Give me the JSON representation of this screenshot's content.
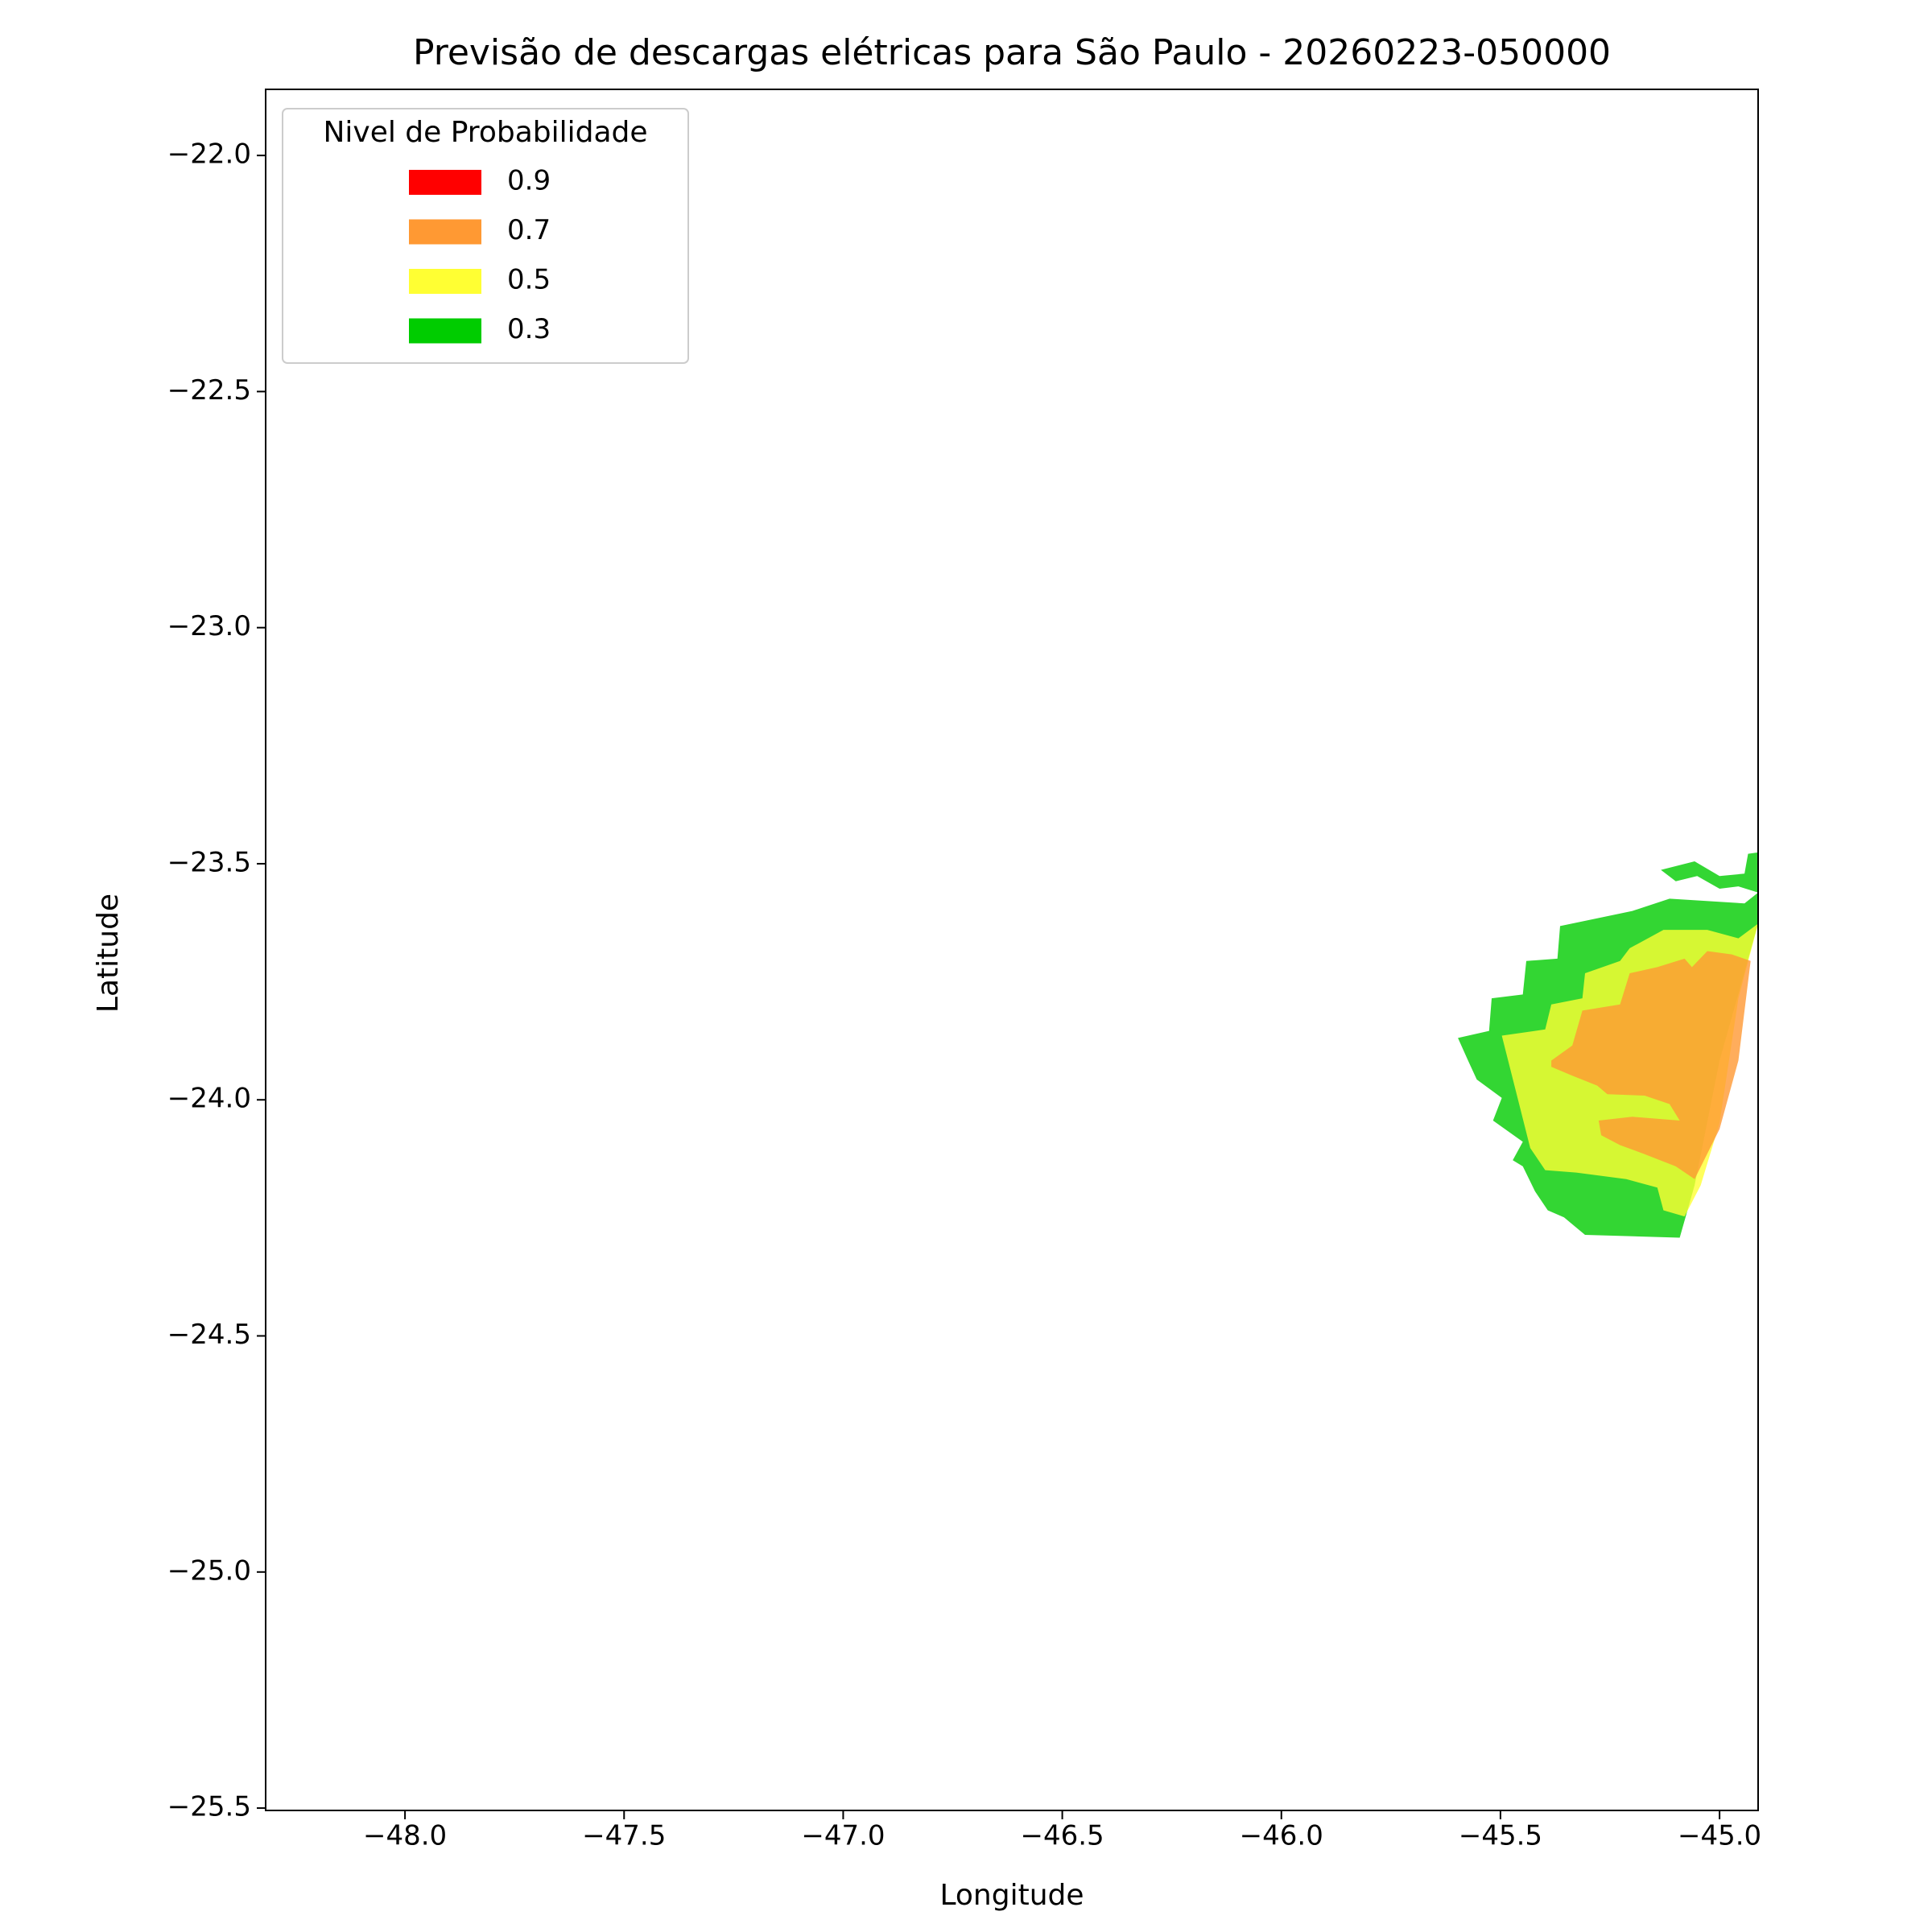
{
  "chart_data": {
    "type": "contourf",
    "title": "Previsão de descargas elétricas para São Paulo - 20260223-050000",
    "xlabel": "Longitude",
    "ylabel": "Latitude",
    "xlim": [
      -48.318,
      -44.912
    ],
    "ylim": [
      -25.505,
      -21.86
    ],
    "xticks": [
      {
        "value": -48,
        "label": "−48.0"
      },
      {
        "value": -47.5,
        "label": "−47.5"
      },
      {
        "value": -47,
        "label": "−47.0"
      },
      {
        "value": -46.5,
        "label": "−46.5"
      },
      {
        "value": -46,
        "label": "−46.0"
      },
      {
        "value": -45.5,
        "label": "−45.5"
      },
      {
        "value": -45,
        "label": "−45.0"
      }
    ],
    "yticks": [
      {
        "value": -22,
        "label": "−22.0"
      },
      {
        "value": -22.5,
        "label": "−22.5"
      },
      {
        "value": -23,
        "label": "−23.0"
      },
      {
        "value": -23.5,
        "label": "−23.5"
      },
      {
        "value": -24,
        "label": "−24.0"
      },
      {
        "value": -24.5,
        "label": "−24.5"
      },
      {
        "value": -25,
        "label": "−25.0"
      },
      {
        "value": -25.5,
        "label": "−25.5"
      }
    ],
    "alpha": 0.8,
    "legend": {
      "title": "Nivel de Probabilidade",
      "position": "upper left"
    },
    "series": [
      {
        "name": "0.9",
        "color": "#ff0000",
        "regions": []
      },
      {
        "name": "0.7",
        "color": "#ff9933",
        "regions": [
          {
            "lon": [
              -45.384,
              -45.336,
              -45.313,
              -45.227,
              -45.205,
              -45.142,
              -45.08,
              -45.063,
              -45.028,
              -44.972,
              -44.929,
              -44.957,
              -45.0,
              -45.057,
              -45.1,
              -45.171,
              -45.227,
              -45.27,
              -45.276,
              -45.199,
              -45.091,
              -45.114,
              -45.171,
              -45.256,
              -45.279,
              -45.336,
              -45.384
            ],
            "lat": [
              -23.917,
              -23.885,
              -23.811,
              -23.798,
              -23.732,
              -23.719,
              -23.701,
              -23.719,
              -23.685,
              -23.692,
              -23.706,
              -23.917,
              -24.062,
              -24.168,
              -24.141,
              -24.115,
              -24.096,
              -24.075,
              -24.044,
              -24.036,
              -24.044,
              -24.009,
              -23.991,
              -23.988,
              -23.97,
              -23.949,
              -23.93
            ]
          }
        ]
      },
      {
        "name": "0.5",
        "color": "#ffff33",
        "regions": [
          {
            "lon": [
              -45.497,
              -45.398,
              -45.384,
              -45.313,
              -45.307,
              -45.227,
              -45.205,
              -45.128,
              -45.028,
              -44.957,
              -44.912,
              -44.957,
              -45.0,
              -45.043,
              -45.08,
              -45.128,
              -45.142,
              -45.213,
              -45.327,
              -45.398,
              -45.432,
              -45.461
            ],
            "lat": [
              -23.864,
              -23.851,
              -23.798,
              -23.785,
              -23.732,
              -23.706,
              -23.679,
              -23.64,
              -23.64,
              -23.658,
              -23.627,
              -23.785,
              -24.049,
              -24.181,
              -24.247,
              -24.234,
              -24.186,
              -24.168,
              -24.154,
              -24.149,
              -24.102,
              -23.996
            ]
          }
        ]
      },
      {
        "name": "0.3",
        "color": "#00cc00",
        "regions": [
          {
            "lon": [
              -45.597,
              -45.526,
              -45.52,
              -45.449,
              -45.441,
              -45.37,
              -45.364,
              -45.199,
              -45.114,
              -44.943,
              -44.912,
              -44.912,
              -45.0,
              -45.057,
              -45.091,
              -45.307,
              -45.355,
              -45.392,
              -45.421,
              -45.449,
              -45.472,
              -45.449,
              -45.517,
              -45.497,
              -45.554,
              -45.574
            ],
            "lat": [
              -23.869,
              -23.854,
              -23.785,
              -23.777,
              -23.706,
              -23.701,
              -23.632,
              -23.6,
              -23.574,
              -23.584,
              -23.561,
              -23.627,
              -23.917,
              -24.181,
              -24.292,
              -24.286,
              -24.249,
              -24.234,
              -24.194,
              -24.141,
              -24.128,
              -24.089,
              -24.044,
              -23.996,
              -23.957,
              -23.917
            ]
          },
          {
            "lon": [
              -45.134,
              -45.057,
              -45.0,
              -44.943,
              -44.935,
              -44.912,
              -44.912,
              -44.957,
              -45.0,
              -45.051,
              -45.1
            ],
            "lat": [
              -23.513,
              -23.495,
              -23.526,
              -23.521,
              -23.479,
              -23.476,
              -23.561,
              -23.548,
              -23.553,
              -23.526,
              -23.537
            ]
          }
        ]
      }
    ]
  }
}
